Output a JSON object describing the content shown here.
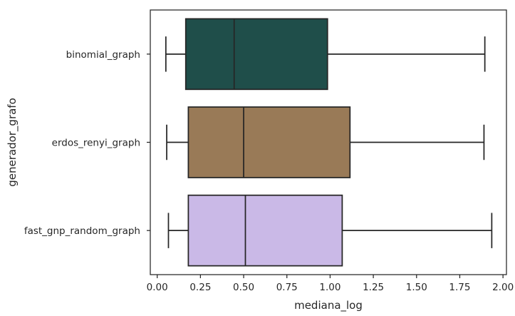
{
  "chart_data": {
    "type": "boxplot",
    "orientation": "horizontal",
    "xlabel": "mediana_log",
    "ylabel": "generador_grafo",
    "xlim": [
      -0.04,
      2.02
    ],
    "xticks": [
      0.0,
      0.25,
      0.5,
      0.75,
      1.0,
      1.25,
      1.5,
      1.75,
      2.0
    ],
    "xtick_labels": [
      "0.00",
      "0.25",
      "0.50",
      "0.75",
      "1.00",
      "1.25",
      "1.50",
      "1.75",
      "2.00"
    ],
    "grid": false,
    "categories": [
      "binomial_graph",
      "erdos_renyi_graph",
      "fast_gnp_random_graph"
    ],
    "boxes": [
      {
        "category": "binomial_graph",
        "whisker_low": 0.05,
        "q1": 0.165,
        "median": 0.445,
        "q3": 0.985,
        "whisker_high": 1.895,
        "color": "#1f4e4a"
      },
      {
        "category": "erdos_renyi_graph",
        "whisker_low": 0.055,
        "q1": 0.18,
        "median": 0.5,
        "q3": 1.115,
        "whisker_high": 1.89,
        "color": "#997a57"
      },
      {
        "category": "fast_gnp_random_graph",
        "whisker_low": 0.065,
        "q1": 0.18,
        "median": 0.51,
        "q3": 1.07,
        "whisker_high": 1.935,
        "color": "#cab9e7"
      }
    ]
  }
}
